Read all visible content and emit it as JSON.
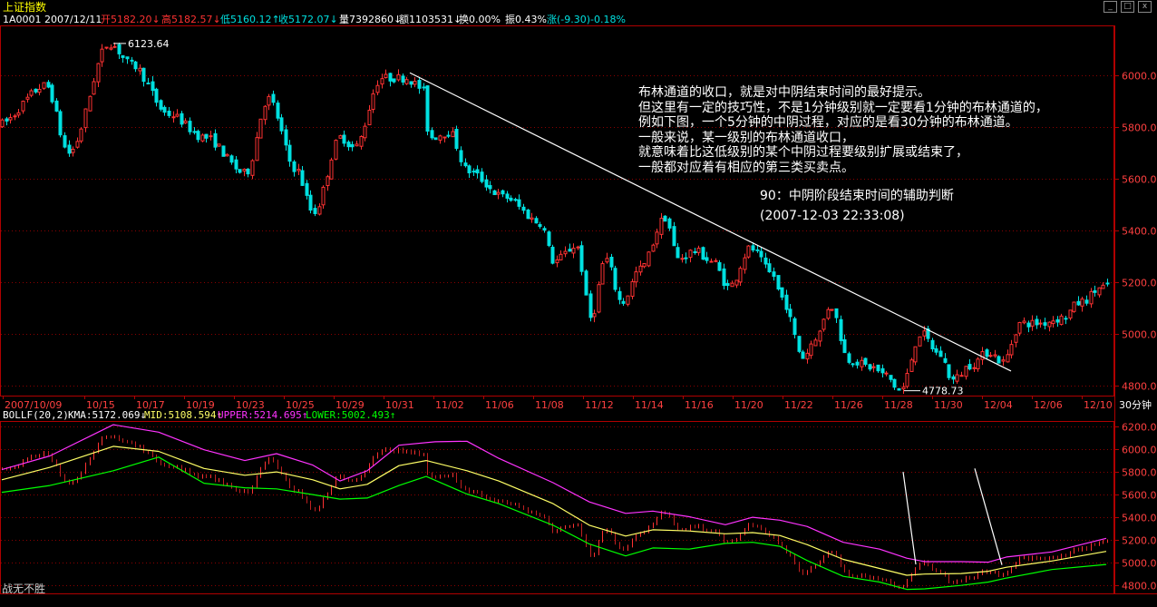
{
  "window": {
    "title": "上证指数",
    "controls": [
      "_",
      "□",
      "x"
    ]
  },
  "info_bar": {
    "code_date": "1A0001 2007/12/11",
    "open": "开5182.20↓",
    "high": "高5182.57↓",
    "low": "低5160.12↑",
    "close": "收5172.07↓",
    "volume": "量7392860↓",
    "amount": "额1103531↓",
    "turnover": "换0.00%",
    "amplitude": "振0.43%",
    "change": "涨(-9.30)-0.18%"
  },
  "annotation": {
    "lines": [
      "布林通道的收口，就是对中阴结束时间的最好提示。",
      "但这里有一定的技巧性，不是1分钟级别就一定要看1分钟的布林通道的，",
      "例如下图，一个5分钟的中阴过程，对应的是看30分钟的布林通道。",
      "一般来说，某一级别的布林通道收口，",
      "就意味着比这低级别的某个中阴过程要级别扩展或结束了，",
      "一般都对应着有相应的第三类买卖点。"
    ],
    "caption_title": "90：中阴阶段结束时间的辅助判断",
    "caption_time": "(2007-12-03 22:33:08)"
  },
  "boll_bar": {
    "name": "BOLLF(20,2)",
    "kma": "KMA:5172.069↓",
    "mid": "MID:5108.594↑",
    "upper": "UPPER:5214.695↑",
    "lower": "LOWER:5002.493↑"
  },
  "period_label": "30分钟",
  "footer_text": "战无不胜",
  "colors": {
    "background": "#000000",
    "up": "#ff3232",
    "down": "#00e0e0",
    "grid": "#8b0000",
    "mid": "#ffff66",
    "upper": "#ff33ff",
    "lower": "#00ff00",
    "title": "#ffff00"
  },
  "chart_data": [
    {
      "type": "candlestick",
      "title": "上证指数",
      "x_tick_labels": [
        "2007/10/09",
        "10/15",
        "10/17",
        "10/19",
        "10/23",
        "10/25",
        "10/29",
        "10/31",
        "11/02",
        "11/06",
        "11/08",
        "11/12",
        "11/14",
        "11/16",
        "11/20",
        "11/22",
        "11/26",
        "11/28",
        "11/30",
        "12/04",
        "12/06",
        "12/10"
      ],
      "y_tick_labels": [
        "6000.0",
        "5800.0",
        "5600.0",
        "5400.0",
        "5200.0",
        "5000.0",
        "4800.0"
      ],
      "ylim": [
        4760,
        6190
      ],
      "high_label": "6123.64",
      "low_label": "4778.73",
      "anchors": [
        {
          "x": 2.0,
          "y": 5810
        },
        {
          "x": 55.0,
          "y": 5960
        },
        {
          "x": 80.0,
          "y": 5700
        },
        {
          "x": 125.0,
          "y": 6123.64
        },
        {
          "x": 150.0,
          "y": 6040
        },
        {
          "x": 190.0,
          "y": 5850
        },
        {
          "x": 230.0,
          "y": 5760
        },
        {
          "x": 275.0,
          "y": 5620
        },
        {
          "x": 300.0,
          "y": 5910
        },
        {
          "x": 330.0,
          "y": 5640
        },
        {
          "x": 350.0,
          "y": 5470
        },
        {
          "x": 380.0,
          "y": 5760
        },
        {
          "x": 395.0,
          "y": 5720
        },
        {
          "x": 425.0,
          "y": 5990
        },
        {
          "x": 452.0,
          "y": 5990
        },
        {
          "x": 470.0,
          "y": 5950
        },
        {
          "x": 478.0,
          "y": 5760
        },
        {
          "x": 500.0,
          "y": 5780
        },
        {
          "x": 520.0,
          "y": 5630
        },
        {
          "x": 560.0,
          "y": 5530
        },
        {
          "x": 600.0,
          "y": 5430
        },
        {
          "x": 615.0,
          "y": 5280
        },
        {
          "x": 640.0,
          "y": 5340
        },
        {
          "x": 656.0,
          "y": 5060
        },
        {
          "x": 672.0,
          "y": 5290
        },
        {
          "x": 690.0,
          "y": 5120
        },
        {
          "x": 710.0,
          "y": 5250
        },
        {
          "x": 738.0,
          "y": 5450
        },
        {
          "x": 752.0,
          "y": 5290
        },
        {
          "x": 770.0,
          "y": 5320
        },
        {
          "x": 790.0,
          "y": 5280
        },
        {
          "x": 808.0,
          "y": 5180
        },
        {
          "x": 832.0,
          "y": 5330
        },
        {
          "x": 856.0,
          "y": 5230
        },
        {
          "x": 866.0,
          "y": 5140
        },
        {
          "x": 890.0,
          "y": 4910
        },
        {
          "x": 905.0,
          "y": 4990
        },
        {
          "x": 920.0,
          "y": 5110
        },
        {
          "x": 940.0,
          "y": 4900
        },
        {
          "x": 965.0,
          "y": 4870
        },
        {
          "x": 980.0,
          "y": 4840
        },
        {
          "x": 997.0,
          "y": 4778.73
        },
        {
          "x": 1020.0,
          "y": 5000
        },
        {
          "x": 1040.0,
          "y": 4920
        },
        {
          "x": 1055.0,
          "y": 4820
        },
        {
          "x": 1075.0,
          "y": 4880
        },
        {
          "x": 1095.0,
          "y": 4930
        },
        {
          "x": 1110.0,
          "y": 4890
        },
        {
          "x": 1130.0,
          "y": 5040
        },
        {
          "x": 1150.0,
          "y": 5040
        },
        {
          "x": 1175.0,
          "y": 5060
        },
        {
          "x": 1195.0,
          "y": 5120
        },
        {
          "x": 1220.0,
          "y": 5180
        }
      ],
      "trendline": [
        {
          "x": 452,
          "y": 6010
        },
        {
          "x": 1115,
          "y": 4855
        }
      ]
    },
    {
      "type": "line",
      "title": "BOLLF(20,2)",
      "y_tick_labels": [
        "6200.0",
        "6000.0",
        "5800.0",
        "5600.0",
        "5400.0",
        "5200.0",
        "5000.0",
        "4800.0"
      ],
      "ylim": [
        4730,
        6240
      ],
      "series": [
        {
          "name": "UPPER",
          "points": [
            [
              2,
              5820
            ],
            [
              55,
              5940
            ],
            [
              125,
              6215
            ],
            [
              175,
              6150
            ],
            [
              225,
              5995
            ],
            [
              270,
              5900
            ],
            [
              305,
              5960
            ],
            [
              345,
              5860
            ],
            [
              375,
              5720
            ],
            [
              405,
              5810
            ],
            [
              440,
              6035
            ],
            [
              480,
              6065
            ],
            [
              515,
              6070
            ],
            [
              550,
              5920
            ],
            [
              610,
              5705
            ],
            [
              650,
              5535
            ],
            [
              690,
              5435
            ],
            [
              720,
              5455
            ],
            [
              760,
              5405
            ],
            [
              800,
              5335
            ],
            [
              830,
              5400
            ],
            [
              860,
              5375
            ],
            [
              890,
              5320
            ],
            [
              930,
              5180
            ],
            [
              970,
              5120
            ],
            [
              1000,
              5040
            ],
            [
              1020,
              5010
            ],
            [
              1060,
              5010
            ],
            [
              1090,
              5005
            ],
            [
              1110,
              5050
            ],
            [
              1160,
              5095
            ],
            [
              1220,
              5215
            ]
          ]
        },
        {
          "name": "MID",
          "points": [
            [
              2,
              5730
            ],
            [
              55,
              5840
            ],
            [
              125,
              6025
            ],
            [
              175,
              5980
            ],
            [
              225,
              5830
            ],
            [
              270,
              5770
            ],
            [
              305,
              5800
            ],
            [
              345,
              5730
            ],
            [
              375,
              5650
            ],
            [
              405,
              5690
            ],
            [
              440,
              5855
            ],
            [
              470,
              5900
            ],
            [
              515,
              5810
            ],
            [
              550,
              5720
            ],
            [
              610,
              5520
            ],
            [
              650,
              5330
            ],
            [
              690,
              5235
            ],
            [
              720,
              5290
            ],
            [
              760,
              5280
            ],
            [
              800,
              5255
            ],
            [
              830,
              5265
            ],
            [
              860,
              5240
            ],
            [
              890,
              5160
            ],
            [
              930,
              5030
            ],
            [
              970,
              4950
            ],
            [
              1000,
              4890
            ],
            [
              1020,
              4900
            ],
            [
              1060,
              4905
            ],
            [
              1090,
              4925
            ],
            [
              1110,
              4960
            ],
            [
              1160,
              5015
            ],
            [
              1220,
              5100
            ]
          ]
        },
        {
          "name": "LOWER",
          "points": [
            [
              2,
              5620
            ],
            [
              55,
              5680
            ],
            [
              125,
              5810
            ],
            [
              175,
              5930
            ],
            [
              225,
              5700
            ],
            [
              270,
              5660
            ],
            [
              305,
              5650
            ],
            [
              345,
              5600
            ],
            [
              375,
              5560
            ],
            [
              405,
              5570
            ],
            [
              440,
              5680
            ],
            [
              470,
              5760
            ],
            [
              515,
              5605
            ],
            [
              550,
              5520
            ],
            [
              610,
              5330
            ],
            [
              650,
              5165
            ],
            [
              690,
              5060
            ],
            [
              720,
              5130
            ],
            [
              760,
              5120
            ],
            [
              800,
              5170
            ],
            [
              830,
              5180
            ],
            [
              860,
              5145
            ],
            [
              890,
              5020
            ],
            [
              930,
              4880
            ],
            [
              970,
              4830
            ],
            [
              1000,
              4765
            ],
            [
              1020,
              4770
            ],
            [
              1060,
              4800
            ],
            [
              1090,
              4830
            ],
            [
              1110,
              4865
            ],
            [
              1160,
              4940
            ],
            [
              1220,
              4985
            ]
          ]
        }
      ],
      "marker_lines": [
        {
          "from": {
            "x": 996,
            "y": 5800
          },
          "to": {
            "x": 1010,
            "y": 4985
          }
        },
        {
          "from": {
            "x": 1075,
            "y": 5830
          },
          "to": {
            "x": 1105,
            "y": 4980
          }
        }
      ]
    }
  ]
}
